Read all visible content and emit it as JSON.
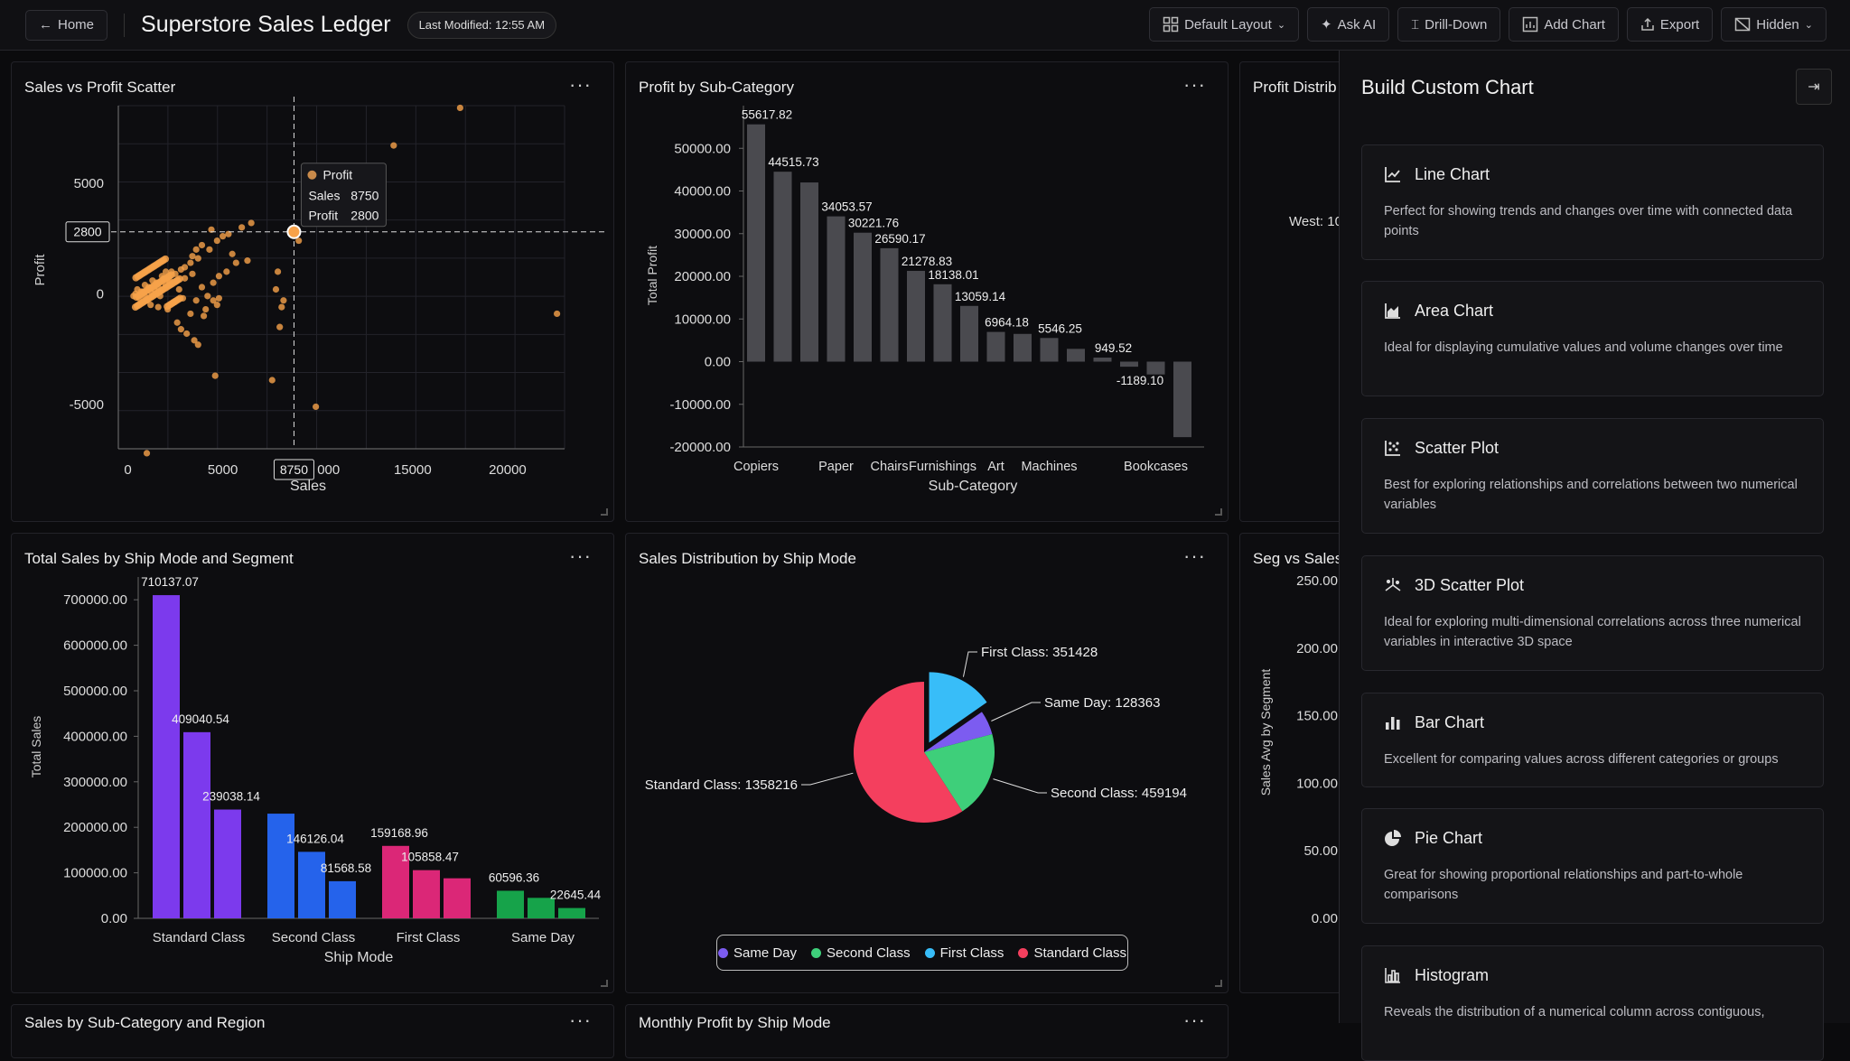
{
  "topbar": {
    "home_label": "Home",
    "title": "Superstore Sales Ledger",
    "last_modified": "Last Modified: 12:55 AM",
    "actions": {
      "layout": "Default Layout",
      "ask_ai": "Ask AI",
      "drill_down": "Drill-Down",
      "add_chart": "Add Chart",
      "export": "Export",
      "hidden": "Hidden"
    }
  },
  "panels": {
    "scatter": {
      "title": "Sales vs Profit Scatter",
      "menu": "···"
    },
    "subcat": {
      "title": "Profit by Sub-Category",
      "menu": "···"
    },
    "profit_dist": {
      "title": "Profit Distrib",
      "west_label": "West: 10"
    },
    "shipseg": {
      "title": "Total Sales by Ship Mode and Segment",
      "menu": "···"
    },
    "shippie": {
      "title": "Sales Distribution by Ship Mode",
      "menu": "···"
    },
    "segsales": {
      "title": "Seg vs Sales"
    },
    "bottom_left": {
      "title": "Sales by Sub-Category and Region",
      "menu": "···"
    },
    "bottom_mid": {
      "title": "Monthly Profit by Ship Mode",
      "menu": "···"
    }
  },
  "tooltip": {
    "series": "Profit",
    "sales_label": "Sales",
    "sales_value": "8750",
    "profit_label": "Profit",
    "profit_value": "2800",
    "x_crosshair": "8750",
    "y_crosshair": "2800"
  },
  "chart_data": [
    {
      "type": "scatter",
      "title": "Sales vs Profit Scatter",
      "xlabel": "Sales",
      "ylabel": "Profit",
      "x_ticks": [
        "0",
        "5000",
        "000",
        "15000",
        "20000"
      ],
      "y_ticks": [
        "5000",
        "0",
        "-5000"
      ],
      "xlim": [
        -500,
        23000
      ],
      "ylim": [
        -7000,
        8500
      ],
      "color": "#f7a24a",
      "points": [
        [
          17500,
          8400
        ],
        [
          14000,
          6700
        ],
        [
          22600,
          -900
        ],
        [
          8750,
          2800
        ],
        [
          9000,
          2400
        ],
        [
          6300,
          1500
        ],
        [
          5200,
          1000
        ],
        [
          5700,
          1400
        ],
        [
          4800,
          800
        ],
        [
          4500,
          500
        ],
        [
          4200,
          -100
        ],
        [
          3900,
          300
        ],
        [
          4700,
          -500
        ],
        [
          4100,
          -700
        ],
        [
          7900,
          1000
        ],
        [
          7800,
          200
        ],
        [
          8200,
          -300
        ],
        [
          8100,
          -600
        ],
        [
          8000,
          -1500
        ],
        [
          7600,
          -3900
        ],
        [
          4600,
          -3700
        ],
        [
          2600,
          -1300
        ],
        [
          2800,
          -1600
        ],
        [
          3100,
          -1800
        ],
        [
          3500,
          -2100
        ],
        [
          3700,
          -2300
        ],
        [
          2100,
          -700
        ],
        [
          1600,
          -600
        ],
        [
          1200,
          -500
        ],
        [
          4500,
          -300
        ],
        [
          4000,
          -1000
        ],
        [
          2400,
          -400
        ],
        [
          3300,
          -900
        ],
        [
          3600,
          -300
        ],
        [
          2700,
          200
        ],
        [
          2900,
          -200
        ],
        [
          600,
          -200
        ],
        [
          800,
          100
        ],
        [
          1000,
          -300
        ],
        [
          1400,
          200
        ],
        [
          1700,
          -100
        ],
        [
          2000,
          400
        ],
        [
          2200,
          600
        ],
        [
          2500,
          900
        ],
        [
          2800,
          1100
        ],
        [
          3000,
          1200
        ],
        [
          3300,
          1400
        ],
        [
          3700,
          1600
        ],
        [
          4300,
          2000
        ],
        [
          4700,
          2400
        ],
        [
          5300,
          2700
        ],
        [
          6000,
          3000
        ],
        [
          6500,
          3200
        ],
        [
          2300,
          1000
        ],
        [
          1900,
          700
        ],
        [
          1500,
          500
        ],
        [
          1100,
          300
        ],
        [
          700,
          100
        ],
        [
          400,
          0
        ],
        [
          300,
          -100
        ],
        [
          500,
          200
        ],
        [
          900,
          400
        ],
        [
          1300,
          600
        ],
        [
          1800,
          800
        ],
        [
          2000,
          1000
        ],
        [
          3400,
          1700
        ],
        [
          3900,
          2200
        ],
        [
          5000,
          2600
        ],
        [
          4400,
          2900
        ],
        [
          3600,
          2000
        ],
        [
          900,
          -100
        ],
        [
          1200,
          100
        ],
        [
          1600,
          300
        ],
        [
          2200,
          500
        ],
        [
          2600,
          600
        ],
        [
          3000,
          700
        ],
        [
          3400,
          900
        ],
        [
          5500,
          1800
        ],
        [
          4800,
          -200
        ],
        [
          9900,
          -5100
        ],
        [
          1000,
          -7200
        ]
      ]
    },
    {
      "type": "bar",
      "title": "Profit by Sub-Category",
      "xlabel": "Sub-Category",
      "ylabel": "Total Profit",
      "ylim": [
        -20000,
        60000
      ],
      "y_ticks": [
        "50000.00",
        "40000.00",
        "30000.00",
        "20000.00",
        "10000.00",
        "0.00",
        "-10000.00",
        "-20000.00"
      ],
      "tick_labels": [
        "Copiers",
        "Paper",
        "Chairs",
        "Furnishings",
        "Art",
        "Machines",
        "Bookcases"
      ],
      "values": [
        55617.82,
        44515.73,
        42000,
        34053.57,
        30221.76,
        26590.17,
        21278.83,
        18138.01,
        13059.14,
        6964.18,
        6500,
        5546.25,
        3000,
        949.52,
        -1189.1,
        -3000,
        -17700
      ],
      "data_labels": [
        "55617.82",
        "44515.73",
        "",
        "34053.57",
        "30221.76",
        "26590.17",
        "21278.83",
        "18138.01",
        "13059.14",
        "6964.18",
        "",
        "5546.25",
        "",
        "949.52",
        "-1189.10",
        "",
        ""
      ],
      "color": "#4a4a4f"
    },
    {
      "type": "bar",
      "title": "Total Sales by Ship Mode and Segment",
      "xlabel": "Ship Mode",
      "ylabel": "Total Sales",
      "ylim": [
        0,
        750000
      ],
      "y_ticks": [
        "700000.00",
        "600000.00",
        "500000.00",
        "400000.00",
        "300000.00",
        "200000.00",
        "100000.00",
        "0.00"
      ],
      "categories": [
        "Standard Class",
        "Second Class",
        "First Class",
        "Same Day"
      ],
      "groups": [
        {
          "color": "#7c3aed",
          "values": [
            710137.07,
            409040.54,
            239038.14
          ],
          "labels": [
            "710137.07",
            "409040.54",
            "239038.14"
          ]
        },
        {
          "color": "#2563eb",
          "values": [
            230000,
            146126.04,
            81568.58
          ],
          "labels": [
            "",
            "146126.04",
            "81568.58"
          ]
        },
        {
          "color": "#db2777",
          "values": [
            159168.96,
            105858.47,
            88000
          ],
          "labels": [
            "159168.96",
            "105858.47",
            ""
          ]
        },
        {
          "color": "#16a34a",
          "values": [
            60596.36,
            45000,
            22645.44
          ],
          "labels": [
            "60596.36",
            "",
            "22645.44"
          ]
        }
      ]
    },
    {
      "type": "pie",
      "title": "Sales Distribution by Ship Mode",
      "slices": [
        {
          "name": "First Class",
          "value": 351428,
          "label": "First Class: 351428",
          "color": "#38bdf8"
        },
        {
          "name": "Same Day",
          "value": 128363,
          "label": "Same Day: 128363",
          "color": "#7c5cf0"
        },
        {
          "name": "Second Class",
          "value": 459194,
          "label": "Second Class: 459194",
          "color": "#3ecf7a"
        },
        {
          "name": "Standard Class",
          "value": 1358216,
          "label": "Standard Class: 1358216",
          "color": "#f43f5e"
        }
      ],
      "legend": [
        "Same Day",
        "Second Class",
        "First Class",
        "Standard Class"
      ],
      "legend_position": "bottom"
    },
    {
      "type": "bar",
      "title": "Seg vs Sales",
      "ylabel": "Sales Avg by Segment",
      "y_ticks": [
        "250.00",
        "200.00",
        "150.00",
        "100.00",
        "50.00",
        "0.00"
      ]
    }
  ],
  "sidebar": {
    "title": "Build Custom Chart",
    "cards": [
      {
        "icon": "line-chart-icon",
        "title": "Line Chart",
        "desc": "Perfect for showing trends and changes over time with connected data points"
      },
      {
        "icon": "area-chart-icon",
        "title": "Area Chart",
        "desc": "Ideal for displaying cumulative values and volume changes over time"
      },
      {
        "icon": "scatter-plot-icon",
        "title": "Scatter Plot",
        "desc": "Best for exploring relationships and correlations between two numerical variables"
      },
      {
        "icon": "3d-scatter-icon",
        "title": "3D Scatter Plot",
        "desc": "Ideal for exploring multi-dimensional correlations across three numerical variables in interactive 3D space"
      },
      {
        "icon": "bar-chart-icon",
        "title": "Bar Chart",
        "desc": "Excellent for comparing values across different categories or groups"
      },
      {
        "icon": "pie-chart-icon",
        "title": "Pie Chart",
        "desc": "Great for showing proportional relationships and part-to-whole comparisons"
      },
      {
        "icon": "histogram-icon",
        "title": "Histogram",
        "desc": "Reveals the distribution of a numerical column across contiguous,"
      }
    ]
  }
}
